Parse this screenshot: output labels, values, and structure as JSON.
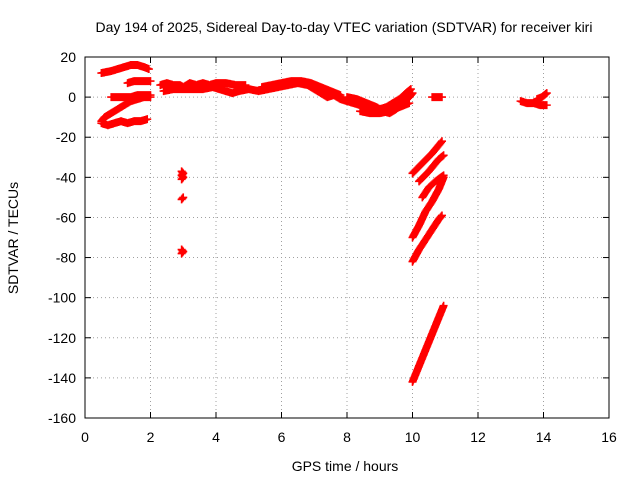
{
  "chart_data": {
    "type": "scatter",
    "title": "Day 194 of 2025, Sidereal Day-to-day VTEC variation (SDTVAR) for receiver kiri",
    "xlabel": "GPS time / hours",
    "ylabel": "SDTVAR / TECUs",
    "xlim": [
      0,
      16
    ],
    "ylim": [
      -160,
      20
    ],
    "xticks": [
      0,
      2,
      4,
      6,
      8,
      10,
      12,
      14,
      16
    ],
    "yticks": [
      -160,
      -140,
      -120,
      -100,
      -80,
      -60,
      -40,
      -20,
      0,
      20
    ],
    "grid": true,
    "series": [
      {
        "name": "SDTVAR",
        "color": "#ff0000",
        "marker": "plus",
        "segments": [
          [
            [
              0.5,
              12
            ],
            [
              0.8,
              13
            ],
            [
              1.0,
              14
            ],
            [
              1.2,
              15
            ],
            [
              1.4,
              16
            ],
            [
              1.6,
              16
            ],
            [
              1.8,
              15
            ],
            [
              1.95,
              14
            ]
          ],
          [
            [
              1.3,
              7
            ],
            [
              1.5,
              8
            ],
            [
              1.7,
              8
            ],
            [
              1.9,
              8
            ],
            [
              2.0,
              8
            ]
          ],
          [
            [
              0.8,
              0
            ],
            [
              1.1,
              0
            ],
            [
              1.4,
              0
            ],
            [
              1.6,
              1
            ],
            [
              1.8,
              1
            ],
            [
              2.0,
              1
            ]
          ],
          [
            [
              0.5,
              -12
            ],
            [
              0.6,
              -10
            ],
            [
              0.8,
              -8
            ],
            [
              1.0,
              -6
            ],
            [
              1.2,
              -4
            ],
            [
              1.4,
              -2
            ],
            [
              1.6,
              -1
            ],
            [
              1.8,
              0
            ],
            [
              2.0,
              0
            ]
          ],
          [
            [
              0.5,
              -13
            ],
            [
              0.7,
              -14
            ],
            [
              0.9,
              -13
            ],
            [
              1.1,
              -12
            ],
            [
              1.3,
              -13
            ],
            [
              1.5,
              -12
            ],
            [
              1.7,
              -12
            ],
            [
              1.9,
              -11
            ]
          ],
          [
            [
              2.3,
              6
            ],
            [
              2.5,
              7
            ],
            [
              2.7,
              6
            ],
            [
              2.9,
              6
            ],
            [
              3.0,
              5
            ],
            [
              3.2,
              7
            ],
            [
              3.4,
              6
            ],
            [
              3.6,
              7
            ],
            [
              3.8,
              6
            ],
            [
              4.0,
              7
            ],
            [
              4.3,
              7
            ],
            [
              4.6,
              6
            ],
            [
              4.9,
              6
            ]
          ],
          [
            [
              2.4,
              3
            ],
            [
              2.7,
              4
            ],
            [
              3.0,
              4
            ],
            [
              3.3,
              4
            ],
            [
              3.6,
              4
            ],
            [
              3.9,
              5
            ],
            [
              4.1,
              4
            ],
            [
              4.3,
              3
            ],
            [
              4.5,
              2
            ],
            [
              4.7,
              3
            ],
            [
              5.0,
              4
            ],
            [
              5.3,
              3
            ],
            [
              5.6,
              4
            ],
            [
              5.9,
              5
            ],
            [
              6.2,
              6
            ],
            [
              6.5,
              7
            ],
            [
              6.8,
              6
            ],
            [
              7.0,
              4
            ],
            [
              7.2,
              2
            ],
            [
              7.4,
              0
            ],
            [
              7.6,
              1
            ],
            [
              7.8,
              -1
            ],
            [
              8.0,
              -2
            ],
            [
              8.2,
              -3
            ],
            [
              8.4,
              -4
            ],
            [
              8.6,
              -5
            ],
            [
              8.8,
              -6
            ],
            [
              9.0,
              -6
            ],
            [
              9.2,
              -5
            ],
            [
              9.4,
              -3
            ],
            [
              9.6,
              -1
            ],
            [
              9.8,
              2
            ],
            [
              9.95,
              4
            ]
          ],
          [
            [
              5.4,
              5
            ],
            [
              5.7,
              6
            ],
            [
              6.0,
              7
            ],
            [
              6.3,
              8
            ],
            [
              6.6,
              8
            ],
            [
              6.9,
              7
            ],
            [
              7.2,
              5
            ],
            [
              7.5,
              3
            ],
            [
              7.8,
              1
            ]
          ],
          [
            [
              8.0,
              0
            ],
            [
              8.3,
              -1
            ],
            [
              8.6,
              -3
            ],
            [
              8.9,
              -5
            ],
            [
              9.1,
              -7
            ],
            [
              9.3,
              -8
            ],
            [
              9.5,
              -6
            ],
            [
              9.7,
              -3
            ],
            [
              9.9,
              0
            ],
            [
              10.0,
              2
            ]
          ],
          [
            [
              8.4,
              -7
            ],
            [
              8.7,
              -8
            ],
            [
              9.0,
              -8
            ],
            [
              9.3,
              -7
            ],
            [
              9.6,
              -5
            ],
            [
              9.9,
              -3
            ]
          ],
          [
            [
              2.95,
              -37
            ],
            [
              3.0,
              -38
            ],
            [
              2.95,
              -39
            ],
            [
              3.0,
              -40
            ],
            [
              2.95,
              -41
            ]
          ],
          [
            [
              2.95,
              -51
            ],
            [
              3.0,
              -50
            ]
          ],
          [
            [
              2.95,
              -76
            ],
            [
              3.0,
              -77
            ],
            [
              2.95,
              -78
            ]
          ],
          [
            [
              10.0,
              -38
            ],
            [
              10.3,
              -33
            ],
            [
              10.6,
              -28
            ],
            [
              10.9,
              -22
            ]
          ],
          [
            [
              10.2,
              -42
            ],
            [
              10.5,
              -37
            ],
            [
              10.8,
              -31
            ],
            [
              10.95,
              -29
            ]
          ],
          [
            [
              10.3,
              -50
            ],
            [
              10.5,
              -45
            ],
            [
              10.7,
              -42
            ],
            [
              10.95,
              -39
            ]
          ],
          [
            [
              10.0,
              -70
            ],
            [
              10.2,
              -64
            ],
            [
              10.4,
              -57
            ],
            [
              10.6,
              -52
            ],
            [
              10.8,
              -46
            ],
            [
              10.95,
              -40
            ]
          ],
          [
            [
              10.0,
              -82
            ],
            [
              10.2,
              -76
            ],
            [
              10.4,
              -71
            ],
            [
              10.6,
              -66
            ],
            [
              10.8,
              -61
            ],
            [
              10.9,
              -59
            ]
          ],
          [
            [
              10.0,
              -142
            ],
            [
              10.2,
              -134
            ],
            [
              10.4,
              -126
            ],
            [
              10.6,
              -118
            ],
            [
              10.8,
              -110
            ],
            [
              10.95,
              -104
            ]
          ],
          [
            [
              10.6,
              0
            ],
            [
              10.9,
              0
            ]
          ],
          [
            [
              13.3,
              -2
            ],
            [
              13.5,
              -3
            ],
            [
              13.7,
              -3
            ],
            [
              13.9,
              -4
            ],
            [
              14.1,
              -4
            ]
          ],
          [
            [
              13.8,
              -1
            ],
            [
              13.95,
              0
            ],
            [
              14.1,
              2
            ]
          ]
        ]
      }
    ]
  }
}
